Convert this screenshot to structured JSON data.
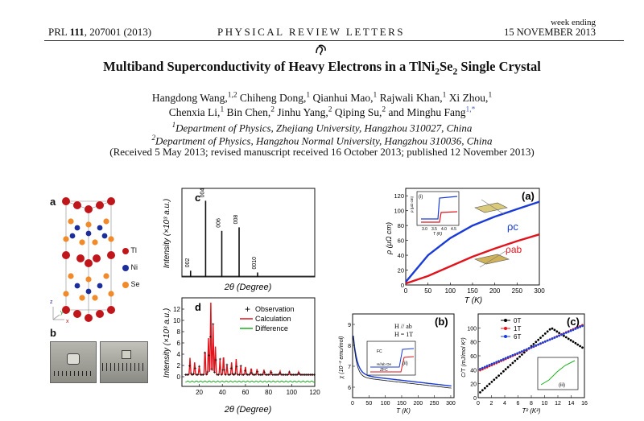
{
  "header": {
    "left_prefix": "PRL ",
    "left_volume": "111",
    "left_suffix": ", 207001 (2013)",
    "center": "PHYSICAL REVIEW LETTERS",
    "right_top": "week ending",
    "right_bottom": "15 NOVEMBER 2013"
  },
  "title": {
    "prefix": "Multiband Superconductivity of Heavy Electrons in a TlNi",
    "sub1": "2",
    "mid": "Se",
    "sub2": "2",
    "suffix": " Single Crystal"
  },
  "authors": {
    "line1": [
      {
        "name": "Hangdong Wang,",
        "sup": "1,2"
      },
      {
        "name": " Chiheng Dong,",
        "sup": "1"
      },
      {
        "name": " Qianhui Mao,",
        "sup": "1"
      },
      {
        "name": " Rajwali Khan,",
        "sup": "1"
      },
      {
        "name": " Xi Zhou,",
        "sup": "1"
      }
    ],
    "line2": [
      {
        "name": "Chenxia Li,",
        "sup": "1"
      },
      {
        "name": " Bin Chen,",
        "sup": "2"
      },
      {
        "name": " Jinhu Yang,",
        "sup": "2"
      },
      {
        "name": " Qiping Su,",
        "sup": "2"
      },
      {
        "name": " and Minghu Fang",
        "sup": "1,*"
      }
    ]
  },
  "affiliations": [
    {
      "sup": "1",
      "text": "Department of Physics, Zhejiang University, Hangzhou 310027, China"
    },
    {
      "sup": "2",
      "text": "Department of Physics, Hangzhou Normal University, Hangzhou 310036, China"
    }
  ],
  "received": "(Received 5 May 2013; revised manuscript received 16 October 2013; published 12 November 2013)",
  "figure": {
    "panel_a": {
      "label": "a",
      "legend": [
        {
          "label": "Tl",
          "color": "#c0151a"
        },
        {
          "label": "Ni",
          "color": "#1c2d9c"
        },
        {
          "label": "Se",
          "color": "#f08a2a"
        }
      ],
      "axes": {
        "z": "z",
        "y": "y",
        "x": "x"
      }
    },
    "panel_b": {
      "label": "b"
    },
    "panel_c": {
      "label": "c",
      "ylabel": "Intensity (×10³ a.u.)",
      "xlabel": "2θ (Degree)",
      "peaks": [
        {
          "x": 12.5,
          "h": 0.07,
          "label": "002"
        },
        {
          "x": 25.5,
          "h": 0.86,
          "label": "004"
        },
        {
          "x": 39.5,
          "h": 0.52,
          "label": "006"
        },
        {
          "x": 54.5,
          "h": 0.56,
          "label": "008"
        },
        {
          "x": 70.5,
          "h": 0.05,
          "label": "0010"
        }
      ]
    },
    "panel_d": {
      "label": "d",
      "ylabel": "Intensity (×10³ a.u.)",
      "xlabel": "2θ (Degree)",
      "xticks": [
        "20",
        "40",
        "60",
        "80",
        "100",
        "120"
      ],
      "yticks": [
        "0",
        "2",
        "4",
        "6",
        "8",
        "10",
        "12"
      ],
      "legend": [
        {
          "label": "Observation",
          "color": "#000000"
        },
        {
          "label": "Calculation",
          "color": "#e0141c"
        },
        {
          "label": "Difference",
          "color": "#19b11e"
        }
      ]
    },
    "panel_rho": {
      "label": "(a)",
      "ylabel": "ρ (μΩ cm)",
      "xlabel": "T (K)",
      "xticks": [
        "0",
        "50",
        "100",
        "150",
        "200",
        "250",
        "300"
      ],
      "yticks": [
        "0",
        "20",
        "40",
        "60",
        "80",
        "100",
        "120"
      ],
      "series": [
        {
          "name": "ρc",
          "color": "#1a3bd6",
          "x": [
            0,
            50,
            100,
            150,
            200,
            250,
            300
          ],
          "y": [
            4,
            40,
            63,
            80,
            92,
            102,
            112
          ]
        },
        {
          "name": "ρab",
          "color": "#e0141c",
          "x": [
            0,
            50,
            100,
            150,
            200,
            250,
            300
          ],
          "y": [
            2,
            12,
            25,
            38,
            49,
            59,
            68
          ]
        }
      ],
      "inset": {
        "label": "(i)",
        "ylabel": "ρ (μΩ cm)",
        "xlabel": "T (K)",
        "xticks": [
          "3.0",
          "3.5",
          "4.0",
          "4.5"
        ],
        "yticks": [
          "0",
          "1",
          "2"
        ]
      }
    },
    "panel_chi": {
      "label": "(b)",
      "ylabel": "χ (10⁻³ emu/mol)",
      "xlabel": "T (K)",
      "annot1": "H // ab",
      "annot2": "H = 1T",
      "xticks": [
        "0",
        "50",
        "100",
        "150",
        "200",
        "250",
        "300"
      ],
      "yticks": [
        "6",
        "7",
        "8",
        "9"
      ],
      "inset": {
        "label": "(ii)",
        "curve1": "FC",
        "curve2": "ZFC",
        "note": "H//ab Oe"
      }
    },
    "panel_ct": {
      "label": "(c)",
      "ylabel": "C/T (mJ/mol K²)",
      "xlabel": "T² (K²)",
      "xticks": [
        "0",
        "2",
        "4",
        "6",
        "8",
        "10",
        "12",
        "14",
        "16"
      ],
      "yticks": [
        "0",
        "20",
        "40",
        "60",
        "80",
        "100"
      ],
      "legend": [
        {
          "label": "0T",
          "color": "#000000"
        },
        {
          "label": "1T",
          "color": "#e0141c"
        },
        {
          "label": "6T",
          "color": "#1a3bd6"
        }
      ],
      "inset": {
        "label": "(iii)"
      }
    }
  }
}
